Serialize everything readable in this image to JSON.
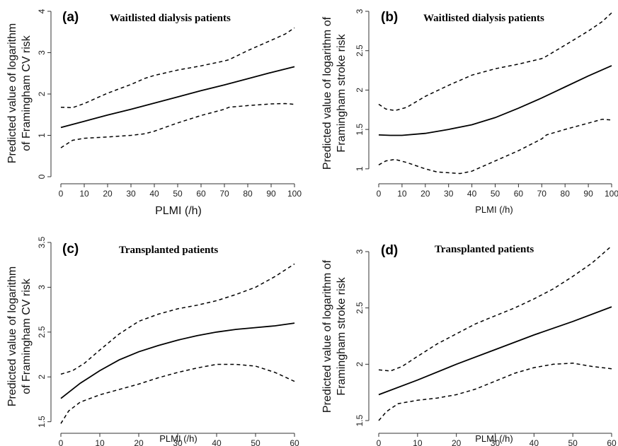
{
  "chart_data": [
    {
      "type": "line",
      "panel_label": "(a)",
      "title": "Waitlisted dialysis patients",
      "xlabel": "PLMI (/h)",
      "ylabel_lines": [
        "Predicted value of logarithm",
        "of Framingham CV risk"
      ],
      "xlim": [
        0,
        100
      ],
      "ylim": [
        0,
        4
      ],
      "xticks": [
        "0",
        "10",
        "20",
        "30",
        "40",
        "50",
        "60",
        "70",
        "80",
        "90",
        "100"
      ],
      "yticks": [
        "0",
        "1",
        "2",
        "3",
        "4"
      ],
      "series": [
        {
          "style": "solid",
          "x": [
            0,
            10,
            20,
            30,
            40,
            50,
            60,
            70,
            80,
            90,
            100
          ],
          "y": [
            1.19,
            1.34,
            1.49,
            1.63,
            1.78,
            1.93,
            2.08,
            2.22,
            2.37,
            2.52,
            2.66
          ]
        },
        {
          "style": "dashed",
          "x": [
            0,
            5,
            10,
            20,
            30,
            36,
            40,
            50,
            60,
            70,
            72,
            80,
            90,
            96,
            100
          ],
          "y": [
            1.68,
            1.67,
            1.77,
            2.02,
            2.23,
            2.38,
            2.45,
            2.58,
            2.68,
            2.8,
            2.83,
            3.05,
            3.3,
            3.45,
            3.6
          ]
        },
        {
          "style": "dashed",
          "x": [
            0,
            5,
            10,
            20,
            30,
            36,
            40,
            50,
            60,
            70,
            72,
            80,
            90,
            96,
            100
          ],
          "y": [
            0.7,
            0.88,
            0.93,
            0.96,
            1.0,
            1.04,
            1.1,
            1.3,
            1.48,
            1.63,
            1.68,
            1.72,
            1.76,
            1.77,
            1.75
          ]
        }
      ]
    },
    {
      "type": "line",
      "panel_label": "(b)",
      "title": "Waitlisted dialysis patients",
      "xlabel": "PLMI (/h)",
      "ylabel_lines": [
        "Predicted value of logarithm of",
        "Framingham stroke risk"
      ],
      "xlim": [
        0,
        100
      ],
      "ylim": [
        0.9,
        3
      ],
      "xticks": [
        "0",
        "10",
        "20",
        "30",
        "40",
        "50",
        "60",
        "70",
        "80",
        "90",
        "100"
      ],
      "yticks": [
        "1",
        "1.5",
        "2",
        "2.5",
        "3"
      ],
      "series": [
        {
          "style": "solid",
          "x": [
            0,
            5,
            10,
            20,
            30,
            40,
            50,
            60,
            70,
            80,
            90,
            100
          ],
          "y": [
            1.43,
            1.425,
            1.425,
            1.45,
            1.5,
            1.56,
            1.65,
            1.77,
            1.9,
            2.04,
            2.18,
            2.31
          ]
        },
        {
          "style": "dashed",
          "x": [
            0,
            3,
            7,
            12,
            20,
            30,
            40,
            50,
            60,
            70,
            72,
            80,
            90,
            96,
            100
          ],
          "y": [
            1.82,
            1.76,
            1.74,
            1.78,
            1.92,
            2.06,
            2.19,
            2.27,
            2.33,
            2.4,
            2.43,
            2.57,
            2.75,
            2.87,
            2.98
          ]
        },
        {
          "style": "dashed",
          "x": [
            0,
            3,
            7,
            12,
            20,
            25,
            30,
            35,
            40,
            50,
            60,
            70,
            72,
            80,
            90,
            96,
            100
          ],
          "y": [
            1.05,
            1.1,
            1.12,
            1.08,
            1.0,
            0.96,
            0.95,
            0.94,
            0.97,
            1.1,
            1.23,
            1.38,
            1.43,
            1.5,
            1.58,
            1.63,
            1.62
          ]
        }
      ]
    },
    {
      "type": "line",
      "panel_label": "(c)",
      "title": "Transplanted patients",
      "xlabel": "PLMI (/h)",
      "ylabel_lines": [
        "Predicted value of logarithm",
        "of Framingham CV risk"
      ],
      "xlim": [
        0,
        60
      ],
      "ylim": [
        1.45,
        3.5
      ],
      "xticks": [
        "0",
        "10",
        "20",
        "30",
        "40",
        "50",
        "60"
      ],
      "yticks": [
        "1.5",
        "2",
        "2.5",
        "3",
        "3.5"
      ],
      "series": [
        {
          "style": "solid",
          "x": [
            0,
            5,
            10,
            15,
            20,
            25,
            30,
            35,
            40,
            45,
            50,
            55,
            60
          ],
          "y": [
            1.76,
            1.93,
            2.07,
            2.19,
            2.28,
            2.35,
            2.41,
            2.46,
            2.5,
            2.53,
            2.55,
            2.57,
            2.6
          ]
        },
        {
          "style": "dashed",
          "x": [
            0,
            3,
            6,
            10,
            15,
            20,
            25,
            30,
            35,
            40,
            45,
            50,
            55,
            60
          ],
          "y": [
            2.03,
            2.07,
            2.15,
            2.3,
            2.48,
            2.62,
            2.7,
            2.76,
            2.8,
            2.85,
            2.92,
            3.0,
            3.12,
            3.26
          ]
        },
        {
          "style": "dashed",
          "x": [
            0,
            2,
            5,
            10,
            15,
            20,
            25,
            30,
            35,
            40,
            43,
            45,
            50,
            55,
            60
          ],
          "y": [
            1.48,
            1.62,
            1.72,
            1.8,
            1.86,
            1.92,
            1.99,
            2.05,
            2.1,
            2.14,
            2.14,
            2.14,
            2.12,
            2.05,
            1.95
          ]
        }
      ]
    },
    {
      "type": "line",
      "panel_label": "(d)",
      "title": "Transplanted patients",
      "xlabel": "PLMI (/h)",
      "ylabel_lines": [
        "Predicted value of logarithm of",
        "Framingham stroke risk"
      ],
      "xlim": [
        0,
        60
      ],
      "ylim": [
        1.45,
        3.05
      ],
      "xticks": [
        "0",
        "10",
        "20",
        "30",
        "40",
        "50",
        "60"
      ],
      "yticks": [
        "1.5",
        "2",
        "2.5",
        "3"
      ],
      "series": [
        {
          "style": "solid",
          "x": [
            0,
            10,
            20,
            30,
            40,
            50,
            60
          ],
          "y": [
            1.73,
            1.86,
            2.0,
            2.13,
            2.26,
            2.38,
            2.51
          ]
        },
        {
          "style": "dashed",
          "x": [
            0,
            3,
            6,
            10,
            15,
            20,
            25,
            30,
            35,
            40,
            45,
            50,
            55,
            60
          ],
          "y": [
            1.95,
            1.94,
            1.98,
            2.07,
            2.18,
            2.27,
            2.36,
            2.43,
            2.5,
            2.58,
            2.67,
            2.78,
            2.9,
            3.05
          ]
        },
        {
          "style": "dashed",
          "x": [
            0,
            2,
            5,
            10,
            15,
            20,
            25,
            30,
            35,
            40,
            45,
            50,
            55,
            60
          ],
          "y": [
            1.5,
            1.58,
            1.65,
            1.68,
            1.7,
            1.73,
            1.78,
            1.85,
            1.92,
            1.97,
            2.0,
            2.01,
            1.98,
            1.96
          ]
        }
      ]
    }
  ]
}
